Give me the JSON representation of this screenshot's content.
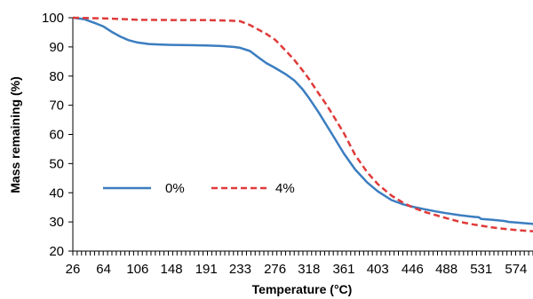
{
  "chart_data": {
    "type": "line",
    "xlabel": "Temperature (°C)",
    "ylabel": "Mass remaining (%)",
    "xlim": [
      26,
      595
    ],
    "ylim": [
      20,
      100
    ],
    "yticks": [
      20,
      30,
      40,
      50,
      60,
      70,
      80,
      90,
      100
    ],
    "xticks": [
      26,
      64,
      106,
      148,
      191,
      233,
      276,
      318,
      361,
      403,
      446,
      488,
      531,
      574
    ],
    "grid": false,
    "legend_position": "center-left",
    "series": [
      {
        "name": "0%",
        "color": "#3B7DC0",
        "dash": "solid",
        "points": [
          [
            26,
            100
          ],
          [
            40,
            99.5
          ],
          [
            55,
            98
          ],
          [
            64,
            97
          ],
          [
            75,
            95
          ],
          [
            85,
            93.5
          ],
          [
            95,
            92.3
          ],
          [
            106,
            91.5
          ],
          [
            120,
            91
          ],
          [
            135,
            90.8
          ],
          [
            148,
            90.7
          ],
          [
            170,
            90.6
          ],
          [
            191,
            90.5
          ],
          [
            210,
            90.3
          ],
          [
            225,
            90
          ],
          [
            233,
            89.7
          ],
          [
            245,
            88.6
          ],
          [
            255,
            86.5
          ],
          [
            265,
            84.5
          ],
          [
            276,
            82.8
          ],
          [
            290,
            80.5
          ],
          [
            300,
            78.5
          ],
          [
            310,
            75.5
          ],
          [
            318,
            72.5
          ],
          [
            330,
            67.5
          ],
          [
            340,
            63
          ],
          [
            350,
            58.5
          ],
          [
            361,
            53.5
          ],
          [
            375,
            48
          ],
          [
            390,
            43.5
          ],
          [
            403,
            40.5
          ],
          [
            420,
            37.5
          ],
          [
            435,
            36
          ],
          [
            446,
            35.2
          ],
          [
            460,
            34.4
          ],
          [
            475,
            33.6
          ],
          [
            488,
            33
          ],
          [
            505,
            32.3
          ],
          [
            520,
            31.8
          ],
          [
            528,
            31.6
          ],
          [
            531,
            31
          ],
          [
            545,
            30.7
          ],
          [
            560,
            30.3
          ],
          [
            565,
            30
          ],
          [
            574,
            29.8
          ],
          [
            595,
            29.3
          ]
        ]
      },
      {
        "name": "4%",
        "color": "#E03A3A",
        "dash": "dashed",
        "points": [
          [
            26,
            100
          ],
          [
            64,
            99.8
          ],
          [
            90,
            99.5
          ],
          [
            106,
            99.3
          ],
          [
            148,
            99.2
          ],
          [
            191,
            99.2
          ],
          [
            220,
            99
          ],
          [
            233,
            98.8
          ],
          [
            245,
            97.5
          ],
          [
            255,
            96
          ],
          [
            265,
            94.5
          ],
          [
            276,
            92.5
          ],
          [
            290,
            88.5
          ],
          [
            300,
            85.5
          ],
          [
            310,
            82
          ],
          [
            318,
            79
          ],
          [
            330,
            74
          ],
          [
            340,
            70
          ],
          [
            350,
            65.5
          ],
          [
            361,
            60.5
          ],
          [
            375,
            53
          ],
          [
            390,
            47
          ],
          [
            403,
            43
          ],
          [
            420,
            39
          ],
          [
            435,
            36.5
          ],
          [
            446,
            35
          ],
          [
            460,
            33.5
          ],
          [
            475,
            32.3
          ],
          [
            488,
            31.3
          ],
          [
            505,
            30
          ],
          [
            520,
            29.2
          ],
          [
            531,
            28.7
          ],
          [
            545,
            28.1
          ],
          [
            560,
            27.6
          ],
          [
            574,
            27.2
          ],
          [
            595,
            26.8
          ]
        ]
      }
    ]
  }
}
